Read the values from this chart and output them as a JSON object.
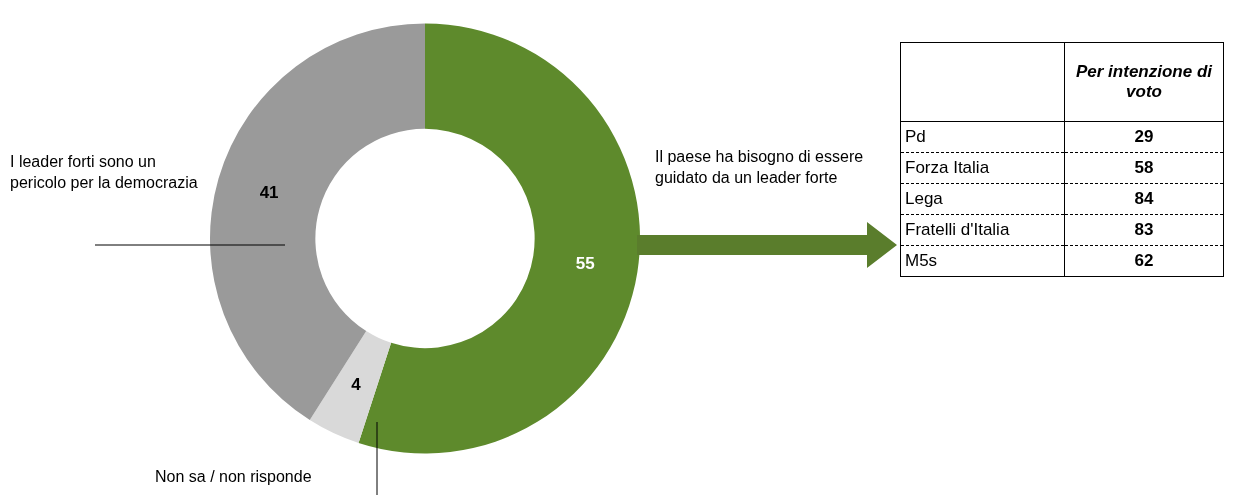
{
  "chart_data": [
    {
      "type": "donut",
      "categories": [
        "Il paese ha bisogno di essere guidato da un leader forte",
        "Non sa / non risponde",
        "I leader forti sono un pericolo per la democrazia"
      ],
      "values": [
        55,
        4,
        41
      ],
      "colors": [
        "#5e8a2c",
        "#d9d9d9",
        "#9a9a9a"
      ],
      "data_labels": true
    },
    {
      "type": "other",
      "title": "Per intenzione di voto",
      "categories": [
        "Pd",
        "Forza Italia",
        "Lega",
        "Fratelli d'Italia",
        "M5s"
      ],
      "values": [
        29,
        58,
        84,
        83,
        62
      ],
      "data_labels": true
    }
  ]
}
